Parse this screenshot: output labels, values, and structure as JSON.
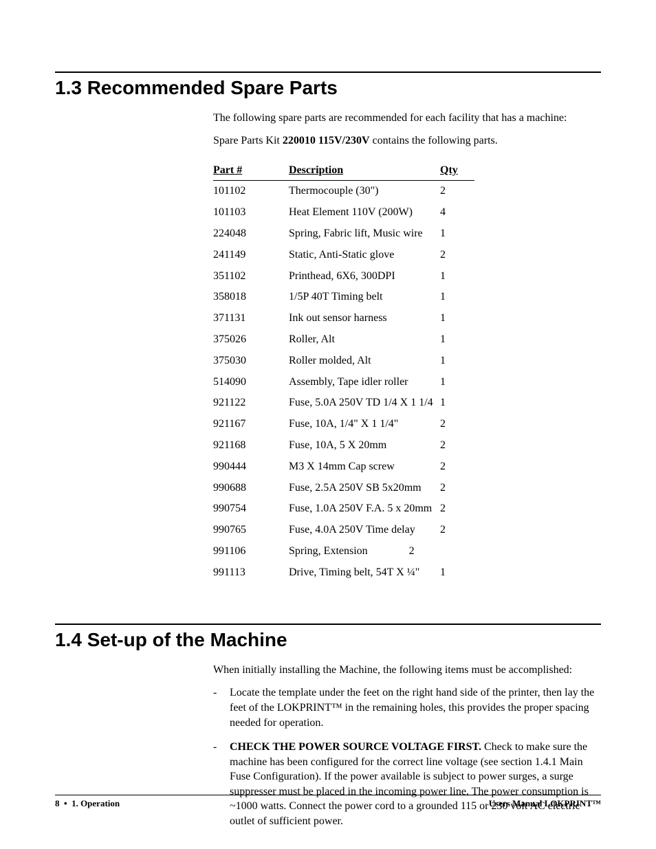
{
  "section13": {
    "title": "1.3 Recommended Spare Parts",
    "intro1": "The following spare parts are recommended for each facility that has a machine:",
    "intro2_pre": "Spare Parts Kit ",
    "intro2_bold": "220010 115V/230V",
    "intro2_post": " contains the following parts.",
    "headers": {
      "part": "Part #",
      "desc": "Description",
      "qty": "Qty"
    },
    "rows": [
      {
        "part": "101102",
        "desc": "Thermocouple (30\")",
        "qty": "2"
      },
      {
        "part": "101103",
        "desc": "Heat Element 110V (200W)",
        "qty": "4"
      },
      {
        "part": "224048",
        "desc": "Spring, Fabric lift, Music wire",
        "qty": "1"
      },
      {
        "part": "241149",
        "desc": "Static, Anti-Static glove",
        "qty": "2"
      },
      {
        "part": "351102",
        "desc": "Printhead, 6X6, 300DPI",
        "qty": "1"
      },
      {
        "part": "358018",
        "desc": "1/5P 40T Timing belt",
        "qty": "1"
      },
      {
        "part": "371131",
        "desc": "Ink out sensor harness",
        "qty": "1"
      },
      {
        "part": "375026",
        "desc": "Roller, Alt",
        "qty": "1"
      },
      {
        "part": "375030",
        "desc": "Roller molded, Alt",
        "qty": "1"
      },
      {
        "part": "514090",
        "desc": "Assembly, Tape idler roller",
        "qty": "1"
      },
      {
        "part": "921122",
        "desc": "Fuse, 5.0A 250V TD 1/4 X 1 1/4",
        "qty": "1"
      },
      {
        "part": "921167",
        "desc": "Fuse, 10A, 1/4\" X 1 1/4\"",
        "qty": "2"
      },
      {
        "part": "921168",
        "desc": "Fuse, 10A, 5 X 20mm",
        "qty": "2"
      },
      {
        "part": "990444",
        "desc": "M3 X 14mm Cap screw",
        "qty": "2"
      },
      {
        "part": "990688",
        "desc": "Fuse, 2.5A 250V SB 5x20mm",
        "qty": "2"
      },
      {
        "part": "990754",
        "desc": "Fuse, 1.0A 250V F.A. 5 x 20mm",
        "qty": "2"
      },
      {
        "part": "990765",
        "desc": "Fuse, 4.0A 250V Time delay",
        "qty": "2"
      },
      {
        "part": "991106",
        "desc": "Spring, Extension               2",
        "qty": ""
      },
      {
        "part": "991113",
        "desc": "Drive, Timing belt, 54T X ¼\"",
        "qty": "1"
      }
    ]
  },
  "section14": {
    "title": "1.4 Set-up of the Machine",
    "intro": "When initially installing the Machine, the following items must be accomplished:",
    "item1": "Locate the template under the feet on the right hand side of the printer, then lay the feet of the LOKPRINT™ in the remaining holes, this provides the proper spacing needed for operation.",
    "item2_bold": "CHECK THE POWER SOURCE VOLTAGE FIRST.",
    "item2_rest": "  Check to make sure the machine has been configured for the correct line voltage (see section 1.4.1 Main Fuse Configuration).  If the power available is subject to power surges, a surge suppresser must be placed in the incoming power line.  The power consumption is ~1000 watts.  Connect the power cord to a grounded 115 or 230 volt AC electric outlet of sufficient power."
  },
  "footer": {
    "page": "8",
    "separator": "•",
    "left_label": "1.  Operation",
    "right": "Users Manual LOKPRINT™"
  }
}
